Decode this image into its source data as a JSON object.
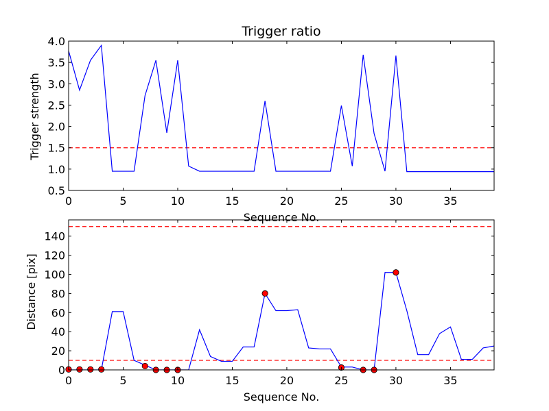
{
  "figure": {
    "background": "#ffffff"
  },
  "chart_data": [
    {
      "type": "line",
      "title": "Trigger ratio",
      "xlabel": "Sequence No.",
      "ylabel": "Trigger strength",
      "xlim": [
        0,
        39
      ],
      "ylim": [
        0.5,
        4.0
      ],
      "xticks": [
        0,
        5,
        10,
        15,
        20,
        25,
        30,
        35
      ],
      "xtick_labels": [
        "0",
        "5",
        "10",
        "15",
        "20",
        "25",
        "30",
        "35"
      ],
      "yticks": [
        0.5,
        1.0,
        1.5,
        2.0,
        2.5,
        3.0,
        3.5,
        4.0
      ],
      "ytick_labels": [
        "0.5",
        "1.0",
        "1.5",
        "2.0",
        "2.5",
        "3.0",
        "3.5",
        "4.0"
      ],
      "grid": false,
      "series": [
        {
          "color": "#0000ff",
          "x": [
            0,
            1,
            2,
            3,
            4,
            5,
            6,
            7,
            8,
            9,
            10,
            11,
            12,
            13,
            14,
            15,
            16,
            17,
            18,
            19,
            20,
            21,
            22,
            23,
            24,
            25,
            26,
            27,
            28,
            29,
            30,
            31,
            32,
            33,
            34,
            35,
            36,
            37,
            38,
            39
          ],
          "y": [
            3.77,
            2.85,
            3.55,
            3.9,
            0.95,
            0.95,
            0.95,
            2.72,
            3.55,
            1.85,
            3.55,
            1.07,
            0.95,
            0.95,
            0.95,
            0.95,
            0.95,
            0.95,
            2.6,
            0.95,
            0.95,
            0.95,
            0.95,
            0.95,
            0.95,
            2.49,
            1.07,
            3.68,
            1.83,
            0.95,
            3.66,
            0.94,
            0.94,
            0.94,
            0.94,
            0.94,
            0.94,
            0.94,
            0.94,
            0.94
          ]
        }
      ],
      "threshold_lines": [
        {
          "y": 1.5,
          "color": "#ff0000",
          "style": "dashed"
        }
      ]
    },
    {
      "type": "line",
      "title": "",
      "xlabel": "Sequence No.",
      "ylabel": "Distance [pix]",
      "xlim": [
        0,
        39
      ],
      "ylim": [
        0,
        157
      ],
      "xticks": [
        0,
        5,
        10,
        15,
        20,
        25,
        30,
        35
      ],
      "xtick_labels": [
        "0",
        "5",
        "10",
        "15",
        "20",
        "25",
        "30",
        "35"
      ],
      "yticks": [
        0,
        20,
        40,
        60,
        80,
        100,
        120,
        140
      ],
      "ytick_labels": [
        "0",
        "20",
        "40",
        "60",
        "80",
        "100",
        "120",
        "140"
      ],
      "grid": false,
      "series": [
        {
          "color": "#0000ff",
          "x": [
            0,
            1,
            2,
            3,
            4,
            5,
            6,
            7,
            8,
            9,
            10,
            11,
            12,
            13,
            14,
            15,
            16,
            17,
            18,
            19,
            20,
            21,
            22,
            23,
            24,
            25,
            26,
            27,
            28,
            29,
            30,
            31,
            32,
            33,
            34,
            35,
            36,
            37,
            38,
            39
          ],
          "y": [
            0,
            0,
            0,
            0,
            61,
            61,
            10,
            5,
            0,
            0,
            0,
            0,
            42,
            14,
            9,
            9,
            24,
            24,
            80,
            62,
            62,
            63,
            23,
            22,
            22,
            3,
            3,
            0,
            0,
            102,
            102,
            62,
            16,
            16,
            38,
            45,
            11,
            11,
            23,
            25
          ]
        }
      ],
      "markers": {
        "color": "#ff0000",
        "x": [
          0,
          1,
          2,
          3,
          7,
          8,
          9,
          10,
          18,
          25,
          27,
          28,
          30
        ],
        "y": [
          0.5,
          0.5,
          0.5,
          0.5,
          4,
          0,
          0,
          0,
          80,
          2.5,
          0,
          0,
          102
        ]
      },
      "threshold_lines": [
        {
          "y": 150,
          "color": "#ff0000",
          "style": "dashed"
        },
        {
          "y": 10,
          "color": "#ff0000",
          "style": "dashed"
        }
      ]
    }
  ]
}
